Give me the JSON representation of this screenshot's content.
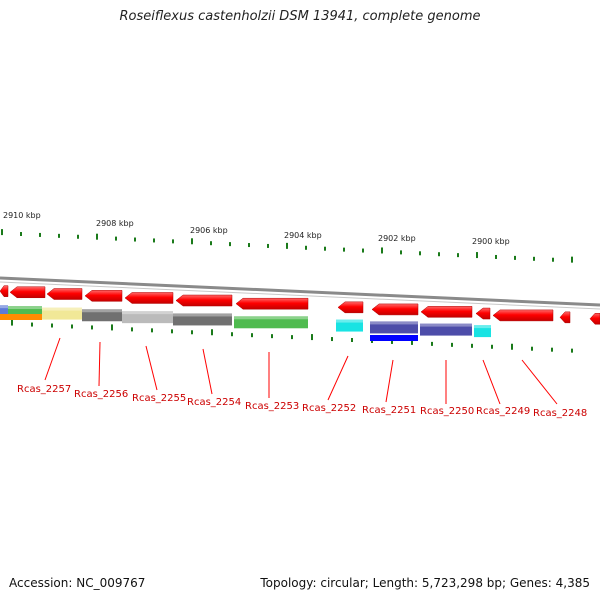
{
  "title": "Roseiflexus castenholzii DSM 13941, complete genome",
  "footer": {
    "accession": "Accession: NC_009767",
    "summary": "Topology: circular; Length: 5,723,298 bp; Genes: 4,385"
  },
  "scale": {
    "labels": [
      "2910 kbp",
      "2908 kbp",
      "2906 kbp",
      "2904 kbp",
      "2902 kbp",
      "2900 kbp"
    ]
  },
  "genes": [
    "Rcas_2257",
    "Rcas_2256",
    "Rcas_2255",
    "Rcas_2254",
    "Rcas_2253",
    "Rcas_2252",
    "Rcas_2251",
    "Rcas_2250",
    "Rcas_2249",
    "Rcas_2248"
  ],
  "colors": {
    "cds": "#ff0000",
    "label": "#cc0000",
    "tick": "#1a7a1a",
    "backbone": "#8a8a8a",
    "cog_colors": [
      "#4a6cd4",
      "#3cb43c",
      "#f0e68c",
      "#606060",
      "#b4b4b4",
      "#00e0e0",
      "#3a3aa0",
      "#0000ff",
      "#ff8c00"
    ]
  }
}
